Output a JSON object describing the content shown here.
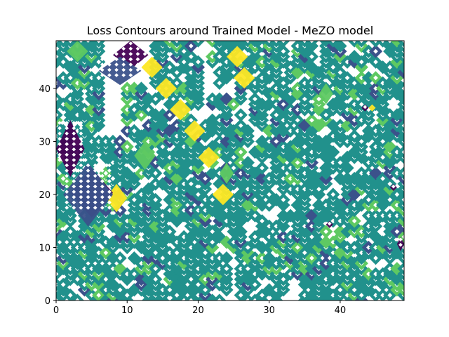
{
  "chart_data": {
    "type": "contour",
    "title": "Loss Contours around Trained Model - MeZO model",
    "xlabel": "",
    "ylabel": "",
    "xlim": [
      0,
      49
    ],
    "ylim": [
      0,
      49
    ],
    "xticks": [
      0,
      10,
      20,
      30,
      40
    ],
    "yticks": [
      0,
      10,
      20,
      30,
      40
    ],
    "grid": false,
    "colormap": [
      "#440154",
      "#3b528b",
      "#21918c",
      "#5ec962",
      "#fde725"
    ],
    "plotted_regions": [
      {
        "level": 3,
        "x": 1.5,
        "y": 46,
        "w": 3,
        "h": 3
      },
      {
        "level": 0,
        "x": 8,
        "y": 45,
        "w": 5,
        "h": 4
      },
      {
        "level": 1,
        "x": 6,
        "y": 42,
        "w": 6,
        "h": 4
      },
      {
        "level": 4,
        "x": 12,
        "y": 43,
        "w": 3,
        "h": 3
      },
      {
        "level": 4,
        "x": 14,
        "y": 39,
        "w": 3,
        "h": 3
      },
      {
        "level": 4,
        "x": 16,
        "y": 35,
        "w": 3,
        "h": 3
      },
      {
        "level": 4,
        "x": 18,
        "y": 31,
        "w": 3,
        "h": 3
      },
      {
        "level": 4,
        "x": 20,
        "y": 26,
        "w": 3,
        "h": 3
      },
      {
        "level": 4,
        "x": 7,
        "y": 18,
        "w": 3,
        "h": 4
      },
      {
        "level": 4,
        "x": 22,
        "y": 19,
        "w": 3,
        "h": 3
      },
      {
        "level": 4,
        "x": 24,
        "y": 45,
        "w": 3,
        "h": 3
      },
      {
        "level": 4,
        "x": 25,
        "y": 41,
        "w": 3,
        "h": 3
      },
      {
        "level": 0,
        "x": 0,
        "y": 26,
        "w": 4,
        "h": 8
      },
      {
        "level": 0,
        "x": 2,
        "y": 18,
        "w": 6,
        "h": 7
      },
      {
        "level": 1,
        "x": 1,
        "y": 17,
        "w": 7,
        "h": 9
      },
      {
        "level": 0,
        "x": 38,
        "y": 14,
        "w": 1,
        "h": 1
      },
      {
        "level": 0,
        "x": 43,
        "y": 36,
        "w": 1,
        "h": 1
      },
      {
        "level": 0,
        "x": 47,
        "y": 21,
        "w": 1,
        "h": 1
      },
      {
        "level": 0,
        "x": 48,
        "y": 10,
        "w": 1,
        "h": 2
      },
      {
        "level": 4,
        "x": 44,
        "y": 36,
        "w": 1,
        "h": 1
      },
      {
        "level": 3,
        "x": 37,
        "y": 38,
        "w": 2,
        "h": 3
      },
      {
        "level": 3,
        "x": 11,
        "y": 26,
        "w": 3,
        "h": 4
      },
      {
        "level": 3,
        "x": 23,
        "y": 23,
        "w": 2,
        "h": 3
      }
    ]
  }
}
